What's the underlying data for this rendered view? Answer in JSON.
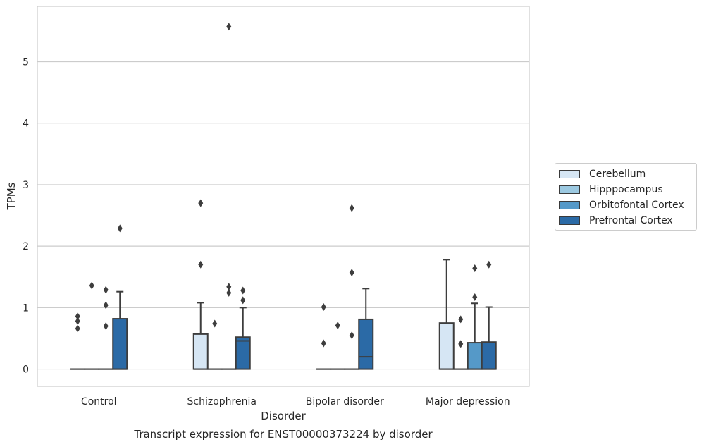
{
  "chart_data": {
    "type": "box",
    "title": "",
    "caption": "Transcript expression for ENST00000373224 by disorder",
    "xlabel": "Disorder",
    "ylabel": "TPMs",
    "ylim": [
      -0.28,
      5.9
    ],
    "yticks": [
      0,
      1,
      2,
      3,
      4,
      5
    ],
    "categories": [
      "Control",
      "Schizophrenia",
      "Bipolar disorder",
      "Major depression"
    ],
    "grid": "horizontal",
    "legend_position": "right",
    "series": [
      {
        "name": "Cerebellum",
        "color": "#d6e6f4",
        "boxes": [
          {
            "q1": 0,
            "median": 0,
            "q3": 0,
            "whisker_low": 0,
            "whisker_high": 0,
            "outliers": [
              0.66,
              0.78,
              0.86
            ]
          },
          {
            "q1": 0,
            "median": 0,
            "q3": 0.57,
            "whisker_low": 0,
            "whisker_high": 1.08,
            "outliers": [
              1.7,
              2.7
            ]
          },
          {
            "q1": 0,
            "median": 0,
            "q3": 0,
            "whisker_low": 0,
            "whisker_high": 0,
            "outliers": [
              0.42,
              1.01
            ]
          },
          {
            "q1": 0,
            "median": 0,
            "q3": 0.75,
            "whisker_low": 0,
            "whisker_high": 1.78,
            "outliers": []
          }
        ]
      },
      {
        "name": "Hipppocampus",
        "color": "#9cc9e1",
        "boxes": [
          {
            "q1": 0,
            "median": 0,
            "q3": 0,
            "whisker_low": 0,
            "whisker_high": 0,
            "outliers": [
              1.36
            ]
          },
          {
            "q1": 0,
            "median": 0,
            "q3": 0,
            "whisker_low": 0,
            "whisker_high": 0,
            "outliers": [
              0.74
            ]
          },
          {
            "q1": 0,
            "median": 0,
            "q3": 0,
            "whisker_low": 0,
            "whisker_high": 0,
            "outliers": [
              0.71
            ]
          },
          {
            "q1": 0,
            "median": 0,
            "q3": 0,
            "whisker_low": 0,
            "whisker_high": 0,
            "outliers": [
              0.41,
              0.81
            ]
          }
        ]
      },
      {
        "name": "Orbitofontal Cortex",
        "color": "#5599c8",
        "boxes": [
          {
            "q1": 0,
            "median": 0,
            "q3": 0,
            "whisker_low": 0,
            "whisker_high": 0,
            "outliers": [
              0.7,
              1.04,
              1.29
            ]
          },
          {
            "q1": 0,
            "median": 0,
            "q3": 0,
            "whisker_low": 0,
            "whisker_high": 0,
            "outliers": [
              1.24,
              1.34,
              5.57
            ]
          },
          {
            "q1": 0,
            "median": 0,
            "q3": 0,
            "whisker_low": 0,
            "whisker_high": 0,
            "outliers": [
              0.55,
              1.57,
              2.62
            ]
          },
          {
            "q1": 0,
            "median": 0,
            "q3": 0.43,
            "whisker_low": 0,
            "whisker_high": 1.07,
            "outliers": [
              1.17,
              1.64
            ]
          }
        ]
      },
      {
        "name": "Prefrontal Cortex",
        "color": "#2b6aa6",
        "boxes": [
          {
            "q1": 0,
            "median": 0,
            "q3": 0.82,
            "whisker_low": 0,
            "whisker_high": 1.26,
            "outliers": [
              2.29
            ]
          },
          {
            "q1": 0,
            "median": 0.46,
            "q3": 0.52,
            "whisker_low": 0,
            "whisker_high": 1.0,
            "outliers": [
              1.12,
              1.28
            ]
          },
          {
            "q1": 0,
            "median": 0.2,
            "q3": 0.81,
            "whisker_low": 0,
            "whisker_high": 1.31,
            "outliers": []
          },
          {
            "q1": 0,
            "median": 0,
            "q3": 0.44,
            "whisker_low": 0,
            "whisker_high": 1.01,
            "outliers": [
              1.7
            ]
          }
        ]
      }
    ]
  }
}
